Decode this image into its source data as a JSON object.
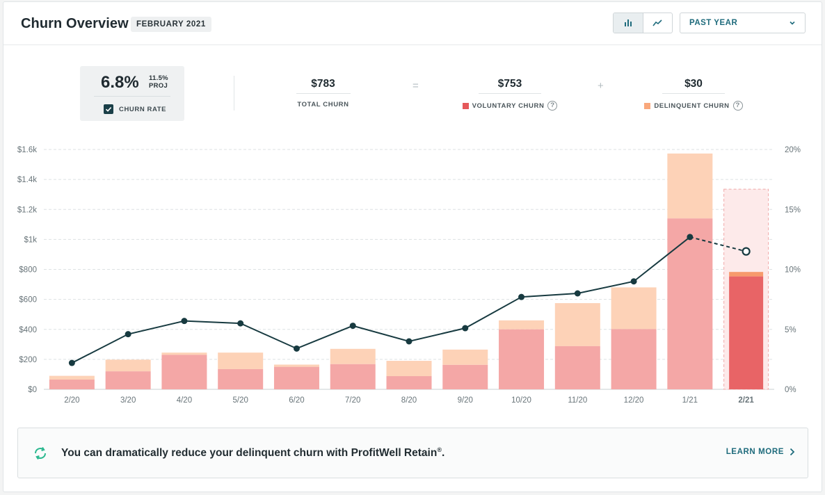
{
  "header": {
    "title": "Churn Overview",
    "period_badge": "FEBRUARY 2021",
    "range_select": "PAST YEAR",
    "view_toggle": {
      "bar_icon": "bar-chart-icon",
      "line_icon": "line-chart-icon"
    }
  },
  "summary": {
    "churn_rate": "6.8%",
    "projected_line1": "11.5%",
    "projected_line2": "PROJ",
    "churn_rate_label": "CHURN RATE",
    "total_churn_value": "$783",
    "total_churn_label": "TOTAL CHURN",
    "equals": "=",
    "voluntary_value": "$753",
    "voluntary_label": "VOLUNTARY CHURN",
    "plus": "+",
    "delinquent_value": "$30",
    "delinquent_label": "DELINQUENT CHURN",
    "help_glyph": "?"
  },
  "colors": {
    "voluntary": "#f4a7a6",
    "voluntary_current": "#e86466",
    "delinquent": "#fdd2b7",
    "delinquent_current": "#f79a6c",
    "line": "#173a40",
    "projection_fill": "#fdeaea",
    "projection_border": "#f0a9a9",
    "voluntary_swatch": "#e5585a",
    "delinquent_swatch": "#f9a87c",
    "accent": "#1e6b7c"
  },
  "chart_data": {
    "type": "bar",
    "stacked": true,
    "categories": [
      "2/20",
      "3/20",
      "4/20",
      "5/20",
      "6/20",
      "7/20",
      "8/20",
      "9/20",
      "10/20",
      "11/20",
      "12/20",
      "1/21",
      "2/21"
    ],
    "series": [
      {
        "name": "VOLUNTARY CHURN",
        "values": [
          65,
          120,
          230,
          135,
          150,
          168,
          88,
          163,
          400,
          288,
          402,
          1140,
          753
        ]
      },
      {
        "name": "DELINQUENT CHURN",
        "values": [
          25,
          78,
          15,
          110,
          15,
          102,
          102,
          102,
          60,
          287,
          278,
          433,
          30
        ]
      },
      {
        "name": "CHURN RATE",
        "axis": "right",
        "values": [
          2.2,
          4.6,
          5.7,
          5.5,
          3.4,
          5.3,
          4.0,
          5.1,
          7.7,
          8.0,
          9.0,
          12.7,
          11.5
        ]
      }
    ],
    "projected_total_current": 1335,
    "projected_index": 12,
    "yticks_left": [
      "$0",
      "$200",
      "$400",
      "$600",
      "$800",
      "$1k",
      "$1.2k",
      "$1.4k",
      "$1.6k"
    ],
    "yticks_right": [
      "0%",
      "5%",
      "10%",
      "15%",
      "20%"
    ],
    "ylim_left": [
      0,
      1600
    ],
    "ylim_right": [
      0,
      20
    ],
    "grid": true
  },
  "banner": {
    "message": "You can dramatically reduce your delinquent churn with ProfitWell Retain",
    "registered": "®",
    "period": ".",
    "cta": "LEARN MORE"
  }
}
